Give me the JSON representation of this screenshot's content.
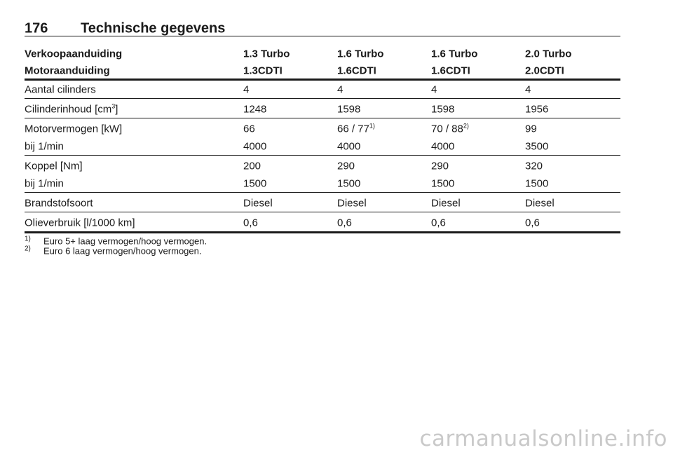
{
  "header": {
    "page_number": "176",
    "title": "Technische gegevens"
  },
  "table": {
    "header_rows": [
      [
        "Verkoopaanduiding",
        "1.3 Turbo",
        "1.6 Turbo",
        "1.6 Turbo",
        "2.0 Turbo"
      ],
      [
        "Motoraanduiding",
        "1.3CDTI",
        "1.6CDTI",
        "1.6CDTI",
        "2.0CDTI"
      ]
    ],
    "groups": [
      [
        [
          "Aantal cilinders",
          "4",
          "4",
          "4",
          "4"
        ]
      ],
      [
        [
          {
            "text": "Cilinderinhoud [cm",
            "sup": "3",
            "after": "]"
          },
          "1248",
          "1598",
          "1598",
          "1956"
        ]
      ],
      [
        [
          "Motorvermogen [kW]",
          "66",
          {
            "text": "66 / 77",
            "sup": "1)"
          },
          {
            "text": "70 / 88",
            "sup": "2)"
          },
          "99"
        ],
        [
          "bij 1/min",
          "4000",
          "4000",
          "4000",
          "3500"
        ]
      ],
      [
        [
          "Koppel [Nm]",
          "200",
          "290",
          "290",
          "320"
        ],
        [
          "bij 1/min",
          "1500",
          "1500",
          "1500",
          "1500"
        ]
      ],
      [
        [
          "Brandstofsoort",
          "Diesel",
          "Diesel",
          "Diesel",
          "Diesel"
        ]
      ],
      [
        [
          "Olieverbruik [l/1000 km]",
          "0,6",
          "0,6",
          "0,6",
          "0,6"
        ]
      ]
    ]
  },
  "footnotes": [
    {
      "mark": "1)",
      "text": "Euro 5+ laag vermogen/hoog vermogen."
    },
    {
      "mark": "2)",
      "text": "Euro 6 laag vermogen/hoog vermogen."
    }
  ],
  "watermark": "carmanualsonline.info"
}
